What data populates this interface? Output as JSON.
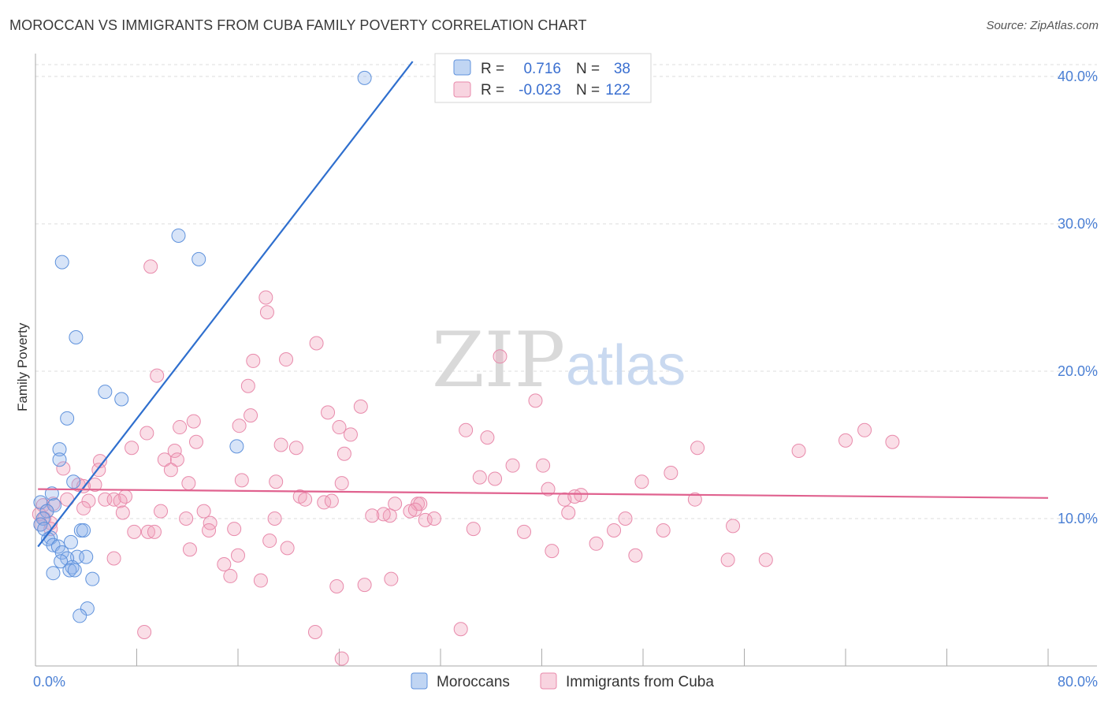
{
  "header": {
    "title": "MOROCCAN VS IMMIGRANTS FROM CUBA FAMILY POVERTY CORRELATION CHART",
    "source": "Source: ZipAtlas.com"
  },
  "watermark": {
    "zip": "ZIP",
    "atlas": "atlas"
  },
  "chart_data": {
    "type": "scatter",
    "title": "MOROCCAN VS IMMIGRANTS FROM CUBA FAMILY POVERTY CORRELATION CHART",
    "xlabel": "",
    "ylabel": "Family Poverty",
    "xlim": [
      0,
      80
    ],
    "ylim": [
      0,
      40
    ],
    "x_tick_labels": [
      {
        "value": 0,
        "label": "0.0%"
      },
      {
        "value": 80,
        "label": "80.0%"
      }
    ],
    "y_tick_labels": [
      {
        "value": 10,
        "label": "10.0%"
      },
      {
        "value": 20,
        "label": "20.0%"
      },
      {
        "value": 30,
        "label": "30.0%"
      },
      {
        "value": 40,
        "label": "40.0%"
      }
    ],
    "grid": true,
    "legend": {
      "position": "top-center",
      "entries": [
        {
          "name": "Moroccans",
          "r_label": "R =",
          "r_value": "0.716",
          "n_label": "N =",
          "n_value": "38",
          "color": "#8db3ea"
        },
        {
          "name": "Immigrants from Cuba",
          "r_label": "R =",
          "r_value": "-0.023",
          "n_label": "N =",
          "n_value": "122",
          "color": "#f0a0bb"
        }
      ]
    },
    "series": [
      {
        "name": "Moroccans",
        "color": "#8db3ea",
        "line_color": "#2f6fce",
        "trend": [
          [
            0.2,
            8.1
          ],
          [
            29.8,
            40.0
          ]
        ],
        "points": [
          [
            26.0,
            39.9
          ],
          [
            11.3,
            29.2
          ],
          [
            12.9,
            27.6
          ],
          [
            2.1,
            27.4
          ],
          [
            3.2,
            22.3
          ],
          [
            5.5,
            18.6
          ],
          [
            6.8,
            18.1
          ],
          [
            2.5,
            16.8
          ],
          [
            1.9,
            14.7
          ],
          [
            1.9,
            14.0
          ],
          [
            15.9,
            14.9
          ],
          [
            3.0,
            12.5
          ],
          [
            1.3,
            11.7
          ],
          [
            0.4,
            11.1
          ],
          [
            1.5,
            10.9
          ],
          [
            0.9,
            10.5
          ],
          [
            0.6,
            10.0
          ],
          [
            0.4,
            9.6
          ],
          [
            0.7,
            9.3
          ],
          [
            3.6,
            9.2
          ],
          [
            3.8,
            9.2
          ],
          [
            1.2,
            8.7
          ],
          [
            1.0,
            8.6
          ],
          [
            2.8,
            8.4
          ],
          [
            1.4,
            8.2
          ],
          [
            1.8,
            8.1
          ],
          [
            2.1,
            7.7
          ],
          [
            3.3,
            7.4
          ],
          [
            4.0,
            7.4
          ],
          [
            2.5,
            7.3
          ],
          [
            2.0,
            7.1
          ],
          [
            2.9,
            6.7
          ],
          [
            2.7,
            6.5
          ],
          [
            3.1,
            6.5
          ],
          [
            1.4,
            6.3
          ],
          [
            4.5,
            5.9
          ],
          [
            4.1,
            3.9
          ],
          [
            3.5,
            3.4
          ]
        ]
      },
      {
        "name": "Immigrants from Cuba",
        "color": "#f0a0bb",
        "line_color": "#e0628f",
        "trend": [
          [
            0.2,
            12.0
          ],
          [
            80.0,
            11.4
          ]
        ],
        "points": [
          [
            18.2,
            25.0
          ],
          [
            9.1,
            27.1
          ],
          [
            18.3,
            24.0
          ],
          [
            22.2,
            21.9
          ],
          [
            36.7,
            21.0
          ],
          [
            19.8,
            20.8
          ],
          [
            17.2,
            20.7
          ],
          [
            16.8,
            19.0
          ],
          [
            9.6,
            19.7
          ],
          [
            39.5,
            18.0
          ],
          [
            25.7,
            17.6
          ],
          [
            23.1,
            17.2
          ],
          [
            17.0,
            17.0
          ],
          [
            12.5,
            16.6
          ],
          [
            16.1,
            16.3
          ],
          [
            11.4,
            16.2
          ],
          [
            24.0,
            16.2
          ],
          [
            34.0,
            16.0
          ],
          [
            65.5,
            16.0
          ],
          [
            8.8,
            15.8
          ],
          [
            24.9,
            15.7
          ],
          [
            35.7,
            15.5
          ],
          [
            12.7,
            15.2
          ],
          [
            64.0,
            15.3
          ],
          [
            67.7,
            15.2
          ],
          [
            19.4,
            15.0
          ],
          [
            20.6,
            14.8
          ],
          [
            7.6,
            14.8
          ],
          [
            11.0,
            14.6
          ],
          [
            52.3,
            14.8
          ],
          [
            60.3,
            14.6
          ],
          [
            24.4,
            14.4
          ],
          [
            10.2,
            14.0
          ],
          [
            11.2,
            14.0
          ],
          [
            5.1,
            13.9
          ],
          [
            37.7,
            13.6
          ],
          [
            40.1,
            13.6
          ],
          [
            2.2,
            13.4
          ],
          [
            10.7,
            13.3
          ],
          [
            5.0,
            13.3
          ],
          [
            50.2,
            13.1
          ],
          [
            35.1,
            12.8
          ],
          [
            36.3,
            12.7
          ],
          [
            16.3,
            12.6
          ],
          [
            19.0,
            12.5
          ],
          [
            24.2,
            12.4
          ],
          [
            12.1,
            12.4
          ],
          [
            3.4,
            12.3
          ],
          [
            4.7,
            12.3
          ],
          [
            3.8,
            12.2
          ],
          [
            47.9,
            12.5
          ],
          [
            40.5,
            12.0
          ],
          [
            7.1,
            11.5
          ],
          [
            43.1,
            11.6
          ],
          [
            2.5,
            11.3
          ],
          [
            5.5,
            11.3
          ],
          [
            6.2,
            11.3
          ],
          [
            4.2,
            11.2
          ],
          [
            6.7,
            11.2
          ],
          [
            20.9,
            11.5
          ],
          [
            21.3,
            11.3
          ],
          [
            22.8,
            11.1
          ],
          [
            23.4,
            11.2
          ],
          [
            28.4,
            11.0
          ],
          [
            30.2,
            11.0
          ],
          [
            30.4,
            11.0
          ],
          [
            52.1,
            11.3
          ],
          [
            41.8,
            11.3
          ],
          [
            42.6,
            11.5
          ],
          [
            1.4,
            11.0
          ],
          [
            0.6,
            10.9
          ],
          [
            0.9,
            10.5
          ],
          [
            3.8,
            10.7
          ],
          [
            9.9,
            10.5
          ],
          [
            13.3,
            10.5
          ],
          [
            6.9,
            10.4
          ],
          [
            29.6,
            10.5
          ],
          [
            28.0,
            10.2
          ],
          [
            30.0,
            10.6
          ],
          [
            27.5,
            10.3
          ],
          [
            26.6,
            10.2
          ],
          [
            42.1,
            10.4
          ],
          [
            0.3,
            10.3
          ],
          [
            0.7,
            10.0
          ],
          [
            0.4,
            9.6
          ],
          [
            1.2,
            9.7
          ],
          [
            11.9,
            10.0
          ],
          [
            13.8,
            9.7
          ],
          [
            18.9,
            10.0
          ],
          [
            30.8,
            9.9
          ],
          [
            31.5,
            10.0
          ],
          [
            46.6,
            10.0
          ],
          [
            1.2,
            9.3
          ],
          [
            7.8,
            9.1
          ],
          [
            8.9,
            9.1
          ],
          [
            9.4,
            9.1
          ],
          [
            13.7,
            9.2
          ],
          [
            15.7,
            9.3
          ],
          [
            34.6,
            9.3
          ],
          [
            38.6,
            9.1
          ],
          [
            45.7,
            9.2
          ],
          [
            49.6,
            9.2
          ],
          [
            55.1,
            9.5
          ],
          [
            18.5,
            8.5
          ],
          [
            19.9,
            8.0
          ],
          [
            44.3,
            8.3
          ],
          [
            12.2,
            7.9
          ],
          [
            6.2,
            7.3
          ],
          [
            16.0,
            7.5
          ],
          [
            47.4,
            7.5
          ],
          [
            40.8,
            7.8
          ],
          [
            54.7,
            7.2
          ],
          [
            57.7,
            7.2
          ],
          [
            14.9,
            6.9
          ],
          [
            15.4,
            6.1
          ],
          [
            17.8,
            5.8
          ],
          [
            28.1,
            5.9
          ],
          [
            23.8,
            5.4
          ],
          [
            26.0,
            5.5
          ],
          [
            22.1,
            2.3
          ],
          [
            33.6,
            2.5
          ],
          [
            8.6,
            2.3
          ],
          [
            24.2,
            0.5
          ]
        ]
      }
    ]
  },
  "bottom_legend": [
    {
      "label": "Moroccans"
    },
    {
      "label": "Immigrants from Cuba"
    }
  ]
}
